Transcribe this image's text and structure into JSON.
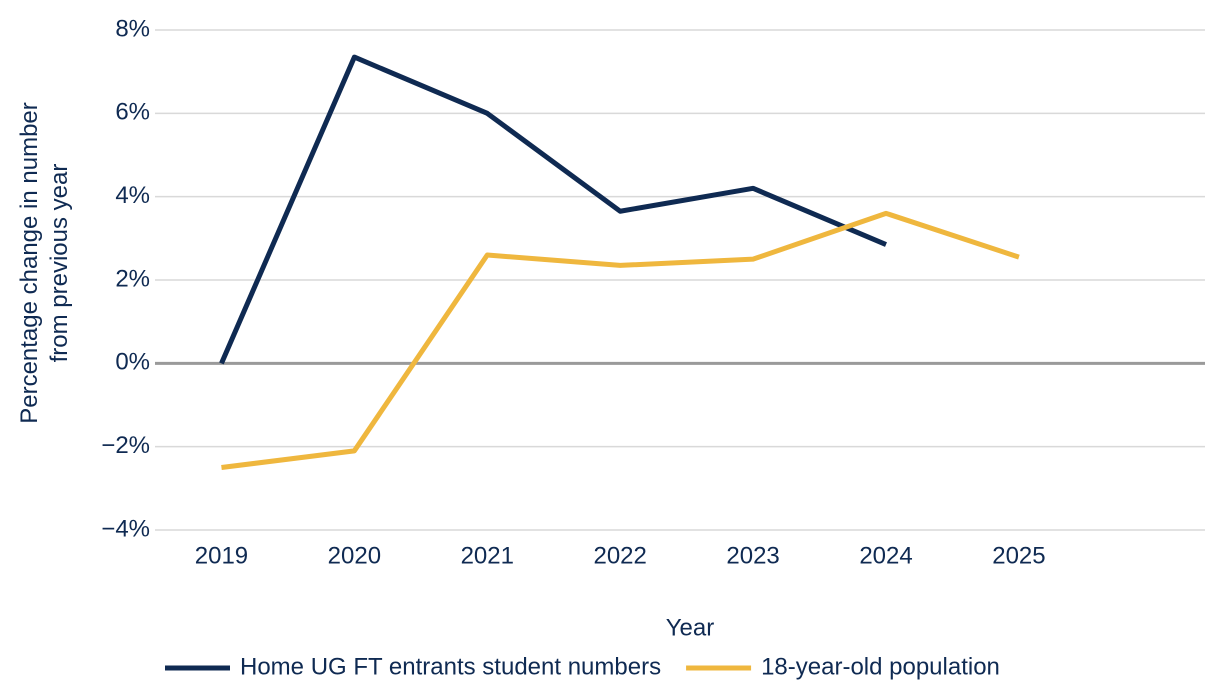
{
  "chart_data": {
    "type": "line",
    "ylabel": "Percentage change in number from previous year",
    "xlabel": "Year",
    "x": [
      2019,
      2020,
      2021,
      2022,
      2023,
      2024,
      2025
    ],
    "xlim": [
      2018.5,
      2026.4
    ],
    "xticks": [
      2019,
      2020,
      2021,
      2022,
      2023,
      2024,
      2025
    ],
    "ylim": [
      -4,
      8
    ],
    "yticks": [
      {
        "value": -4,
        "label": "−4%"
      },
      {
        "value": -2,
        "label": "−2%"
      },
      {
        "value": 0,
        "label": "0%"
      },
      {
        "value": 2,
        "label": "2%"
      },
      {
        "value": 4,
        "label": "4%"
      },
      {
        "value": 6,
        "label": "6%"
      },
      {
        "value": 8,
        "label": "8%"
      }
    ],
    "grid": true,
    "legend": "bottom",
    "series": [
      {
        "name": "Home UG FT entrants student numbers",
        "color": "#0f2a52",
        "values": [
          0,
          7.35,
          6.0,
          3.65,
          4.2,
          2.85,
          null
        ]
      },
      {
        "name": "18-year-old population",
        "color": "#efb73e",
        "values": [
          -2.5,
          -2.1,
          2.6,
          2.35,
          2.5,
          3.6,
          2.55
        ]
      }
    ]
  }
}
